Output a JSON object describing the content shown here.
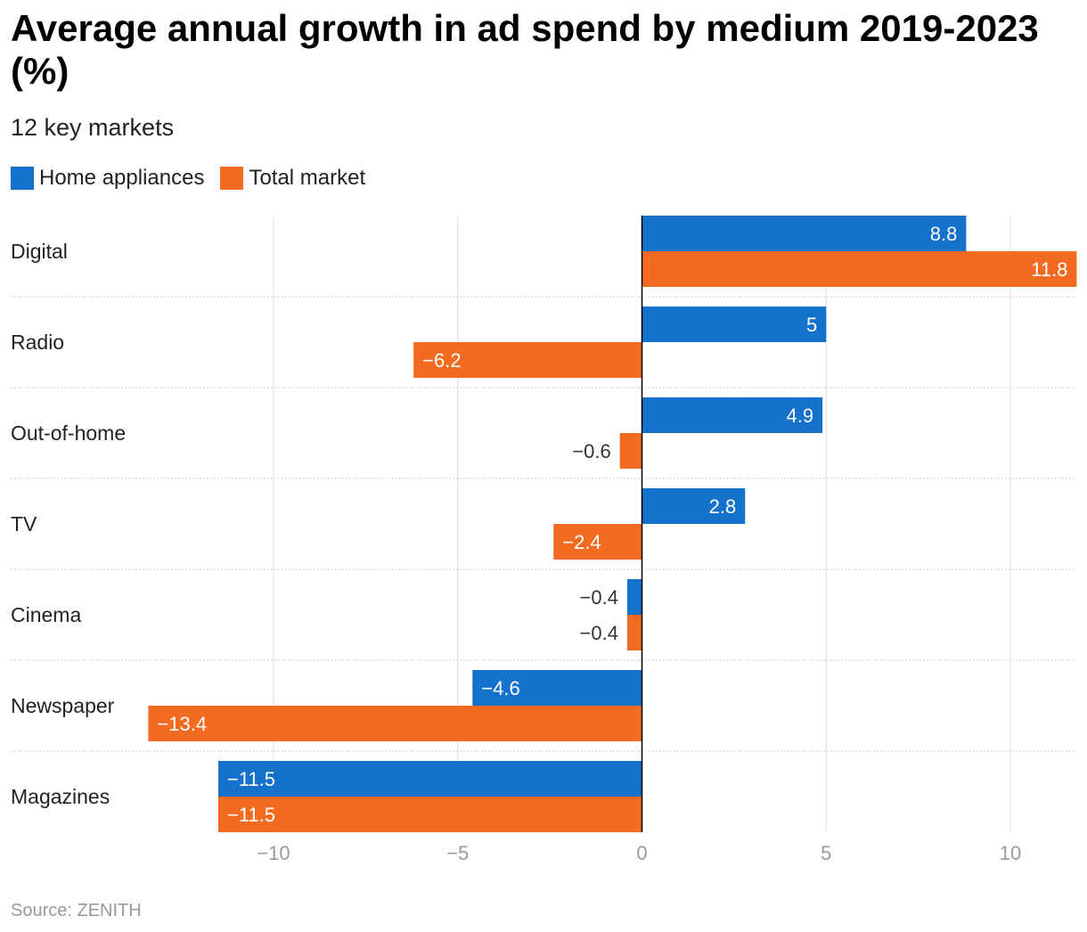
{
  "title": "Average annual growth in ad spend by medium 2019-2023 (%)",
  "subtitle": "12 key markets",
  "source": "Source: ZENITH",
  "colors": {
    "home_appliances": "#1471CC",
    "total_market": "#F26B21",
    "grid": "#dddddd",
    "axis": "#000000",
    "tick": "#999999"
  },
  "chart_data": {
    "type": "bar",
    "orientation": "horizontal",
    "categories": [
      "Digital",
      "Radio",
      "Out-of-home",
      "TV",
      "Cinema",
      "Newspaper",
      "Magazines"
    ],
    "series": [
      {
        "name": "Home appliances",
        "values": [
          8.8,
          5,
          4.9,
          2.8,
          -0.4,
          -4.6,
          -11.5
        ]
      },
      {
        "name": "Total market",
        "values": [
          11.8,
          -6.2,
          -0.6,
          -2.4,
          -0.4,
          -13.4,
          -11.5
        ]
      }
    ],
    "xlim": [
      -13.4,
      11.8
    ],
    "xticks": [
      -10,
      -5,
      0,
      5,
      10
    ],
    "xtick_labels": [
      "−10",
      "−5",
      "0",
      "5",
      "10"
    ],
    "grid": true,
    "legend": "top-left"
  }
}
